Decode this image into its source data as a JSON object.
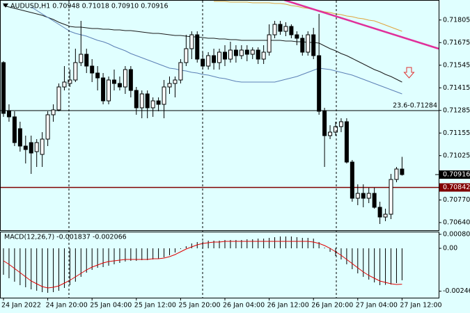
{
  "chart_data": {
    "type": "candlestick",
    "title": "AUDUSD,H1  0.70948 0.71018 0.70910 0.70916",
    "categories": [
      "24 Jan 2022",
      null,
      null,
      null,
      null,
      null,
      null,
      null,
      "24 Jan 20:00",
      null,
      null,
      null,
      null,
      null,
      null,
      null,
      "25 Jan 04:00",
      null,
      null,
      null,
      null,
      null,
      null,
      null,
      "25 Jan 12:00",
      null,
      null,
      null,
      null,
      null,
      null,
      null,
      "25 Jan 20:00",
      null,
      null,
      null,
      null,
      null,
      null,
      null,
      "26 Jan 04:00",
      null,
      null,
      null,
      null,
      null,
      null,
      null,
      "26 Jan 12:00",
      null,
      null,
      null,
      null,
      null,
      null,
      null,
      "26 Jan 20:00",
      null,
      null,
      null,
      null,
      null,
      null,
      null,
      "27 Jan 04:00",
      null,
      null,
      null,
      null,
      null,
      null,
      null,
      "27 Jan 12:00"
    ],
    "open": [
      0.7156,
      0.7128,
      0.71248,
      0.7118,
      0.7108,
      0.711,
      0.71048,
      0.71032,
      0.7112,
      0.7126,
      0.71288,
      0.7142,
      0.7144,
      0.7146,
      0.7156,
      0.71608,
      0.7154,
      0.715,
      0.71472,
      0.7134,
      0.7146,
      0.7144,
      0.7142,
      0.7152,
      0.714,
      0.713,
      0.7138,
      0.713,
      0.7134,
      0.7132,
      0.7142,
      0.7144,
      0.7146,
      0.7156,
      0.7164,
      0.7172,
      0.7158,
      0.7154,
      0.716,
      0.7156,
      0.7162,
      0.7158,
      0.71632,
      0.716,
      0.71632,
      0.71608,
      0.71632,
      0.7158,
      0.7162,
      0.7172,
      0.7178,
      0.7174,
      0.71768,
      0.7172,
      0.717,
      0.7162,
      0.7172,
      0.716,
      0.7128,
      0.7114,
      0.7116,
      0.71192,
      0.7122,
      0.70988,
      0.7078,
      0.70808,
      0.7078,
      0.70808,
      0.70728,
      0.70672,
      0.70688,
      0.70888,
      0.70948
    ],
    "high": [
      0.71568,
      0.7132,
      0.7128,
      0.7122,
      0.7114,
      0.7114,
      0.7112,
      0.7116,
      0.7128,
      0.7132,
      0.7144,
      0.7154,
      0.7152,
      0.7164,
      0.718,
      0.7164,
      0.7158,
      0.7154,
      0.715,
      0.7148,
      0.7152,
      0.7148,
      0.7154,
      0.7154,
      0.7142,
      0.714,
      0.714,
      0.7136,
      0.7136,
      0.7146,
      0.7148,
      0.7148,
      0.7158,
      0.7172,
      0.7174,
      0.7174,
      0.7162,
      0.7162,
      0.7164,
      0.7164,
      0.7166,
      0.7168,
      0.7166,
      0.7166,
      0.7166,
      0.71648,
      0.71648,
      0.7166,
      0.7178,
      0.718,
      0.718,
      0.71792,
      0.7178,
      0.7174,
      0.7172,
      0.7174,
      0.7176,
      0.7184,
      0.713,
      0.712,
      0.7122,
      0.7124,
      0.7124,
      0.71,
      0.7086,
      0.7086,
      0.7084,
      0.7084,
      0.7076,
      0.7072,
      0.7092,
      0.7096,
      0.71018
    ],
    "low": [
      0.71248,
      0.7122,
      0.7108,
      0.71048,
      0.7098,
      0.7092,
      0.7096,
      0.7096,
      0.7108,
      0.7122,
      0.7128,
      0.714,
      0.7142,
      0.71448,
      0.7154,
      0.715,
      0.71448,
      0.714,
      0.7132,
      0.7132,
      0.714,
      0.714,
      0.7138,
      0.7136,
      0.7126,
      0.7124,
      0.7124,
      0.71248,
      0.7128,
      0.7124,
      0.7138,
      0.7136,
      0.7144,
      0.7154,
      0.7158,
      0.7156,
      0.7152,
      0.7152,
      0.7152,
      0.7152,
      0.7154,
      0.7156,
      0.7156,
      0.7158,
      0.71568,
      0.7158,
      0.71552,
      0.71552,
      0.716,
      0.717,
      0.7172,
      0.71712,
      0.717,
      0.7166,
      0.716,
      0.716,
      0.7158,
      0.7126,
      0.7096,
      0.7112,
      0.7114,
      0.7116,
      0.7098,
      0.7076,
      0.7074,
      0.70728,
      0.70752,
      0.7072,
      0.70632,
      0.70648,
      0.7066,
      0.70872,
      0.7091
    ],
    "close": [
      0.71268,
      0.71248,
      0.711,
      0.7108,
      0.7106,
      0.7104,
      0.711,
      0.7112,
      0.7126,
      0.71288,
      0.7142,
      0.71448,
      0.7146,
      0.7156,
      0.71608,
      0.7154,
      0.715,
      0.71472,
      0.7134,
      0.7146,
      0.7144,
      0.7142,
      0.7152,
      0.714,
      0.713,
      0.7138,
      0.713,
      0.7134,
      0.7132,
      0.7142,
      0.7144,
      0.7146,
      0.7156,
      0.7164,
      0.7172,
      0.7158,
      0.7154,
      0.716,
      0.7156,
      0.7162,
      0.7158,
      0.71632,
      0.716,
      0.71632,
      0.71608,
      0.71632,
      0.7158,
      0.7162,
      0.7172,
      0.7178,
      0.7174,
      0.71768,
      0.7172,
      0.717,
      0.7162,
      0.7172,
      0.716,
      0.7128,
      0.7114,
      0.7116,
      0.71192,
      0.7122,
      0.70988,
      0.7078,
      0.70808,
      0.7078,
      0.70808,
      0.70728,
      0.70672,
      0.70688,
      0.70888,
      0.70948,
      0.70916
    ],
    "bull_color": "#ffffff",
    "bear_color": "#000000",
    "moving_averages": [
      {
        "color": "#e0a33a",
        "values": [
          null,
          null,
          null,
          null,
          null,
          null,
          null,
          null,
          null,
          null,
          null,
          null,
          null,
          null,
          null,
          null,
          null,
          null,
          null,
          null,
          null,
          null,
          null,
          null,
          null,
          null,
          null,
          null,
          null,
          null,
          null,
          null,
          null,
          null,
          null,
          null,
          null,
          null,
          0.71912,
          0.71912,
          0.71912,
          0.71908,
          0.71908,
          0.71908,
          0.71908,
          0.71904,
          0.71904,
          0.71904,
          0.71904,
          0.719,
          0.719,
          0.71896,
          0.71888,
          0.71884,
          0.71876,
          0.71872,
          0.71864,
          0.7186,
          0.71852,
          0.71848,
          0.7184,
          0.71836,
          0.71828,
          0.71824,
          0.71816,
          0.71812,
          0.71804,
          0.718,
          0.71788,
          0.71776,
          0.71764,
          0.71752,
          0.7174
        ]
      },
      {
        "color": "#1a1a1a",
        "values": [
          0.71888,
          0.7188,
          0.71872,
          0.71864,
          0.71856,
          0.71848,
          0.7184,
          0.71832,
          0.7182,
          0.71808,
          0.71792,
          0.7178,
          0.71768,
          0.71764,
          0.71764,
          0.7176,
          0.71756,
          0.71756,
          0.71752,
          0.71752,
          0.71748,
          0.71748,
          0.71744,
          0.71744,
          0.7174,
          0.71736,
          0.71732,
          0.71728,
          0.71728,
          0.71724,
          0.7172,
          0.71716,
          0.71716,
          0.71712,
          0.71708,
          0.71708,
          0.71704,
          0.717,
          0.717,
          0.71696,
          0.71696,
          0.71692,
          0.71692,
          0.71688,
          0.71688,
          0.71688,
          0.71688,
          0.71688,
          0.71688,
          0.71688,
          0.71688,
          0.71684,
          0.71684,
          0.7168,
          0.7168,
          0.71676,
          0.71676,
          0.71672,
          0.71656,
          0.7164,
          0.71628,
          0.71612,
          0.716,
          0.71584,
          0.71568,
          0.71552,
          0.71536,
          0.7152,
          0.71508,
          0.71492,
          0.7148,
          0.71464,
          0.71448
        ]
      },
      {
        "color": "#5b7fb5",
        "values": [
          null,
          null,
          null,
          null,
          null,
          0.7188,
          0.7186,
          0.7184,
          0.7182,
          0.718,
          0.7178,
          0.7176,
          0.7174,
          0.71728,
          0.7172,
          0.71712,
          0.717,
          0.71688,
          0.7168,
          0.71668,
          0.71652,
          0.7164,
          0.71628,
          0.71612,
          0.716,
          0.71588,
          0.71576,
          0.71564,
          0.71552,
          0.7154,
          0.71528,
          0.71524,
          0.71516,
          0.71512,
          0.71504,
          0.715,
          0.71492,
          0.71488,
          0.7148,
          0.71472,
          0.71468,
          0.7146,
          0.71452,
          0.71448,
          0.71448,
          0.71448,
          0.71448,
          0.71448,
          0.71448,
          0.71448,
          0.71456,
          0.71464,
          0.71472,
          0.7148,
          0.71492,
          0.71504,
          0.71516,
          0.71528,
          0.71524,
          0.7152,
          0.71512,
          0.71504,
          0.71496,
          0.71488,
          0.71476,
          0.71464,
          0.71452,
          0.7144,
          0.71428,
          0.71416,
          0.71404,
          0.71392,
          0.7138
        ]
      }
    ],
    "levels": [
      {
        "value": 0.71284,
        "label": "23.6-0.71284",
        "color": "#000000",
        "label_position": "line"
      },
      {
        "value": 0.70842,
        "label": "0.70842",
        "color": "#800000",
        "label_position": "axis"
      }
    ],
    "last_price": 0.70916,
    "ylim": [
      0.706,
      0.7192
    ],
    "yticks": [
      0.71805,
      0.71675,
      0.71545,
      0.71415,
      0.71285,
      0.71155,
      0.71025,
      {
        "value": 0.7077,
        "label": "0.70770"
      },
      {
        "value": 0.7064,
        "label": "0.70640"
      }
    ],
    "background": "#e0ffff",
    "macd": {
      "label": "MACD(12,26,7) -0.001837 -0.002066",
      "histogram": [
        -0.00152,
        -0.00172,
        -0.00192,
        -0.00212,
        -0.00224,
        -0.00236,
        -0.00244,
        -0.00252,
        -0.00256,
        -0.00252,
        -0.00244,
        -0.00228,
        -0.00212,
        -0.00192,
        -0.00164,
        -0.0014,
        -0.00124,
        -0.00112,
        -0.00108,
        -0.001,
        -0.00092,
        -0.00084,
        -0.00076,
        -0.00072,
        -0.00072,
        -0.00068,
        -0.00068,
        -0.00064,
        -0.0006,
        -0.00052,
        -0.0004,
        -0.00024,
        -4e-05,
        0.00012,
        0.00028,
        0.00036,
        0.0004,
        0.00044,
        0.00044,
        0.00044,
        0.00048,
        0.00048,
        0.00048,
        0.00048,
        0.00052,
        0.00052,
        0.00056,
        0.00056,
        0.0006,
        0.00064,
        0.00068,
        0.00068,
        0.00068,
        0.00064,
        0.0006,
        0.0006,
        0.00056,
        0.00036,
        4e-05,
        -0.0002,
        -0.00044,
        -0.00064,
        -0.00092,
        -0.0012,
        -0.00144,
        -0.00164,
        -0.0018,
        -0.00196,
        -0.00212,
        -0.0021,
        -0.00208,
        -0.002,
        -0.001837
      ],
      "signal": [
        -0.00072,
        -0.00092,
        -0.00116,
        -0.0014,
        -0.00164,
        -0.00188,
        -0.00204,
        -0.0022,
        -0.00228,
        -0.00224,
        -0.00216,
        -0.002,
        -0.00184,
        -0.00164,
        -0.00144,
        -0.00124,
        -0.00108,
        -0.00096,
        -0.00084,
        -0.00076,
        -0.00072,
        -0.00068,
        -0.00064,
        -0.00064,
        -0.00064,
        -0.00064,
        -0.00064,
        -0.0006,
        -0.0006,
        -0.00056,
        -0.00048,
        -0.00036,
        -0.0002,
        -4e-05,
        8e-05,
        0.0002,
        0.00028,
        0.00032,
        0.00036,
        0.00036,
        0.0004,
        0.0004,
        0.0004,
        0.0004,
        0.0004,
        0.0004,
        0.0004,
        0.0004,
        0.0004,
        0.0004,
        0.0004,
        0.0004,
        0.0004,
        0.0004,
        0.0004,
        0.0004,
        0.00036,
        0.00028,
        0.00016,
        0,
        -0.0002,
        -0.0004,
        -0.00064,
        -0.00088,
        -0.00112,
        -0.00136,
        -0.00156,
        -0.00172,
        -0.00188,
        -0.00196,
        -0.00204,
        -0.00208,
        -0.002066
      ],
      "histogram_color": "#000000",
      "signal_color": "#e00000",
      "ylim": [
        -0.00284,
        0.00096
      ],
      "yticks": [
        0.000806,
        {
          "value": 0,
          "label": "0.00"
        },
        -0.002467
      ]
    }
  }
}
